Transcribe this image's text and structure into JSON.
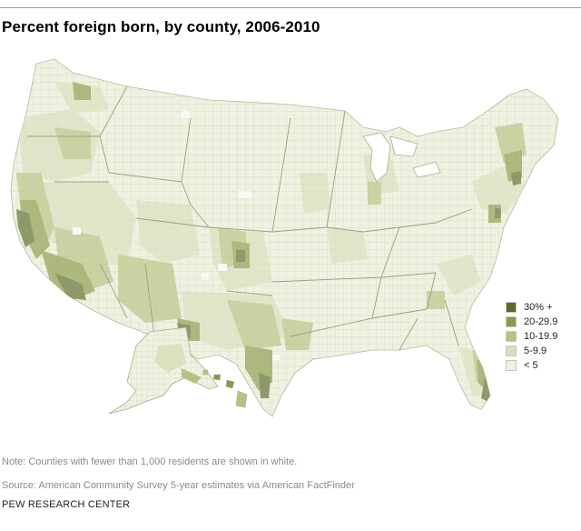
{
  "title": "Percent foreign born, by county, 2006-2010",
  "legend": {
    "items": [
      {
        "label": "30% +",
        "color": "#5c6b2c"
      },
      {
        "label": "20-29.9",
        "color": "#8a9b48"
      },
      {
        "label": "10-19.9",
        "color": "#b5c283"
      },
      {
        "label": "5-9.9",
        "color": "#d9dfbb"
      },
      {
        "label": "< 5",
        "color": "#eff2e1"
      }
    ]
  },
  "note": "Note: Counties with fewer than 1,000 residents are shown in white.",
  "source": "Source: American Community Survey 5-year estimates via American FactFinder",
  "brand": "PEW RESEARCH CENTER",
  "colors": {
    "border": "#a9ae8f",
    "background": "#ffffff",
    "rule": "#9a9a9a"
  }
}
